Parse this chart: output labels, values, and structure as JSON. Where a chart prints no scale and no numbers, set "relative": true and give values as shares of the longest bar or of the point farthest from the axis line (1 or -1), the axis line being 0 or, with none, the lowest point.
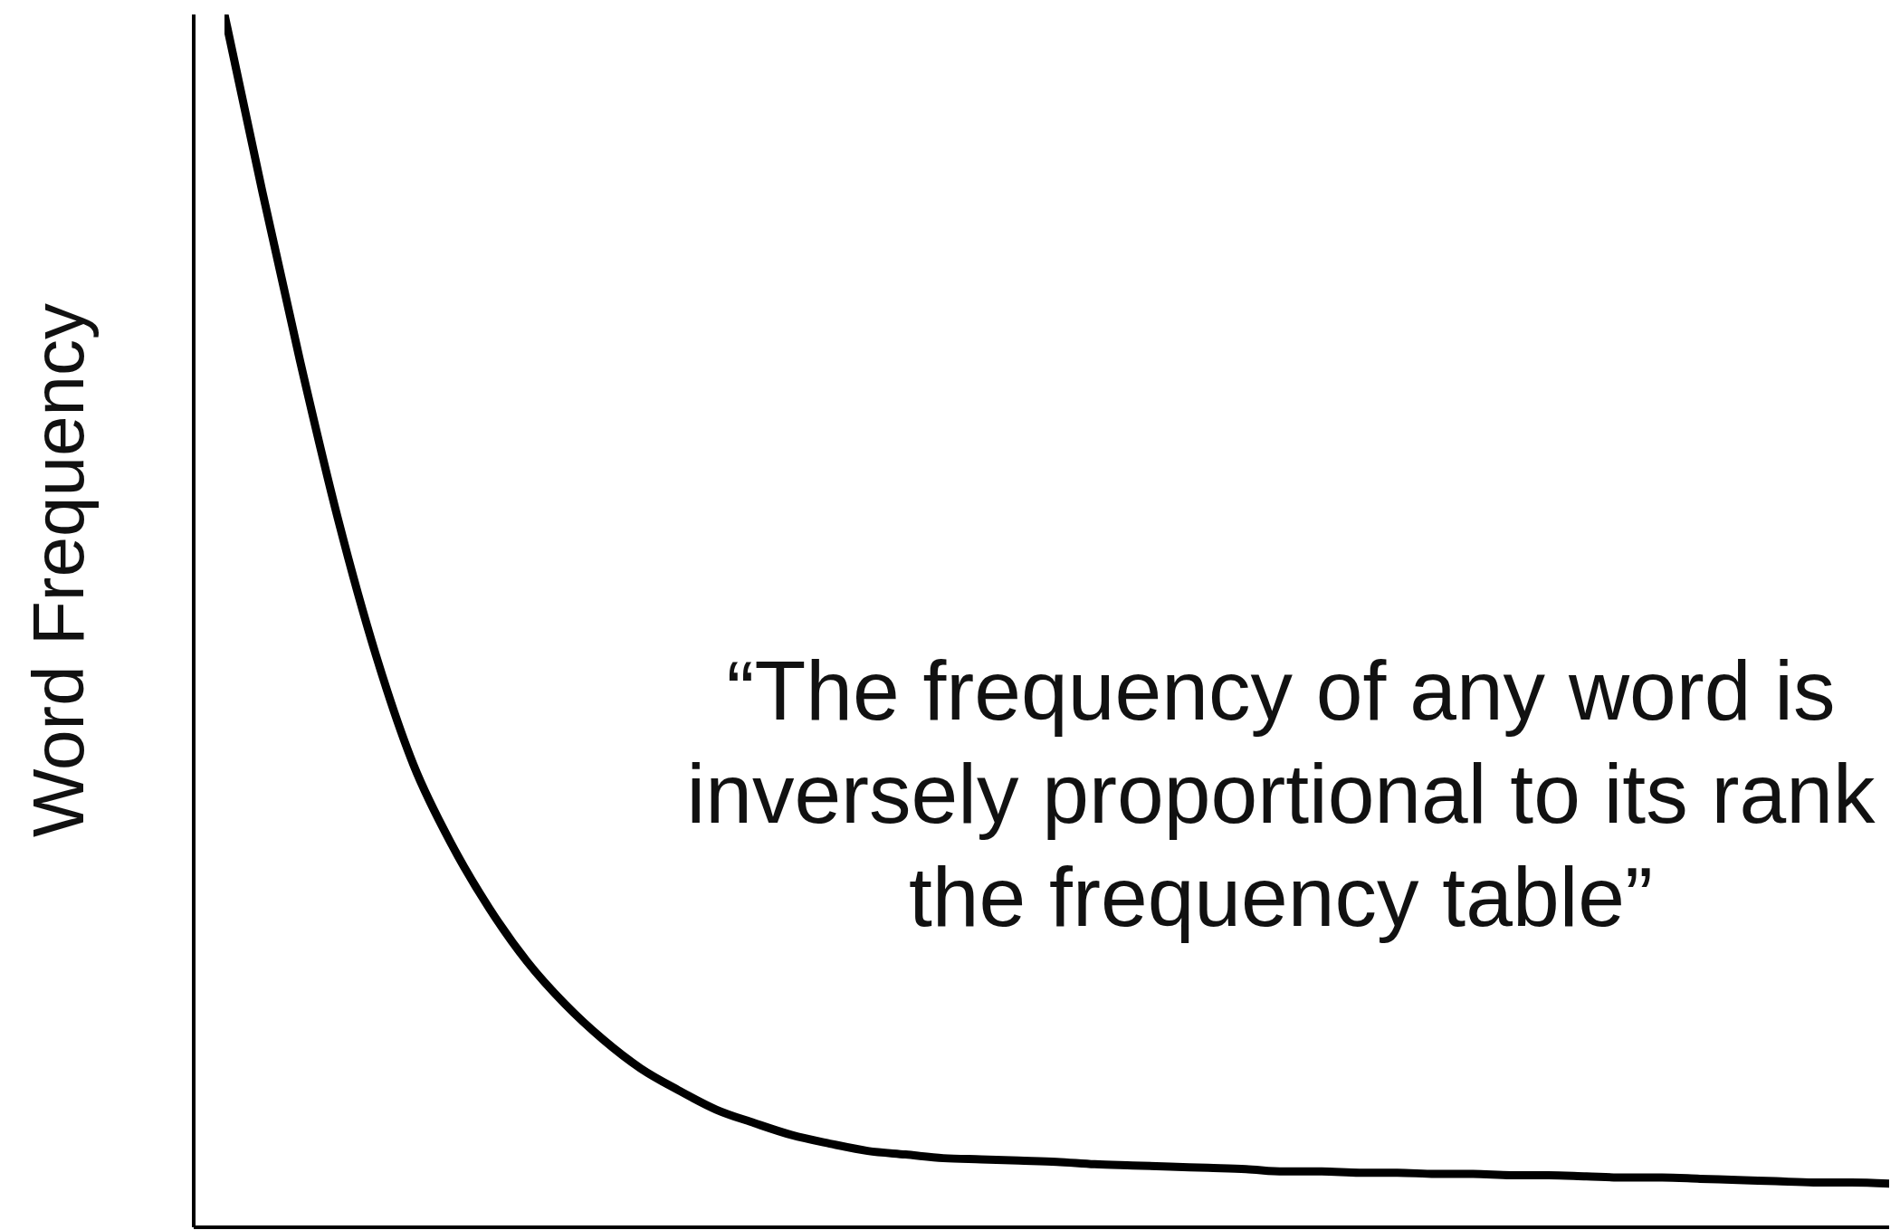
{
  "chart_data": {
    "type": "line",
    "relative": true,
    "categories": [
      null,
      null,
      null,
      null,
      null,
      null,
      null,
      null,
      null,
      null,
      null,
      null,
      null,
      null,
      null,
      null,
      null,
      null,
      null,
      null,
      null,
      null,
      null,
      null,
      null,
      null,
      null,
      null,
      null,
      null,
      null,
      null,
      null,
      null,
      null,
      null,
      null,
      null,
      null,
      null,
      null,
      null,
      null,
      null,
      null
    ],
    "values": [
      1.0,
      0.854,
      0.714,
      0.584,
      0.472,
      0.381,
      0.316,
      0.263,
      0.219,
      0.184,
      0.155,
      0.131,
      0.113,
      0.097,
      0.086,
      0.076,
      0.069,
      0.063,
      0.06,
      0.057,
      0.056,
      0.055,
      0.054,
      0.052,
      0.051,
      0.05,
      0.049,
      0.048,
      0.046,
      0.046,
      0.045,
      0.045,
      0.044,
      0.044,
      0.043,
      0.043,
      0.042,
      0.041,
      0.041,
      0.04,
      0.039,
      0.038,
      0.037,
      0.037,
      0.036
    ],
    "color": "#000000",
    "marker": "none",
    "line_style": "solid",
    "ylabel": "Word Frequency",
    "annotations": [
      "“The frequency of any word is inversely proportional to its rank the frequency table”"
    ]
  }
}
